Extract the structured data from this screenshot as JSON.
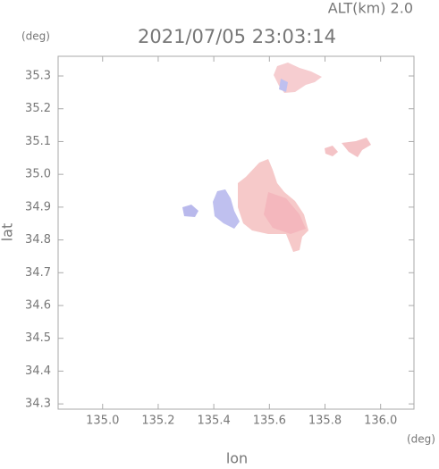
{
  "chart_data": {
    "type": "map",
    "title": "2021/07/05 23:03:14",
    "subtitle": "ALT(km) 2.0",
    "x_label": "lon",
    "y_label": "lat",
    "x_unit": "(deg)",
    "y_unit": "(deg)",
    "xlim": [
      134.84,
      136.12
    ],
    "ylim": [
      34.284,
      35.36
    ],
    "xticks": [
      {
        "value": 135,
        "label": "135.0"
      },
      135.2,
      135.4,
      135.6,
      135.8,
      {
        "value": 136,
        "label": "136.0"
      }
    ],
    "yticks": [
      34.3,
      34.4,
      34.5,
      34.6,
      34.7,
      34.8,
      34.9,
      {
        "value": 35,
        "label": "35.0"
      },
      35.1,
      35.2,
      35.3
    ]
  }
}
